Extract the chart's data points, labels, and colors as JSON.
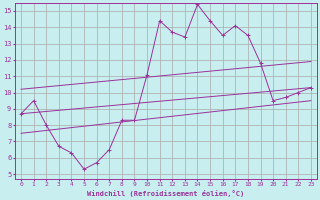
{
  "xlabel": "Windchill (Refroidissement éolien,°C)",
  "background_color": "#c8eef0",
  "grid_color": "#aaaaaa",
  "line_color": "#993399",
  "x_data": [
    0,
    1,
    2,
    3,
    4,
    5,
    6,
    7,
    8,
    9,
    10,
    11,
    12,
    13,
    14,
    15,
    16,
    17,
    18,
    19,
    20,
    21,
    22,
    23
  ],
  "y_zigzag": [
    8.7,
    9.5,
    8.0,
    6.7,
    6.3,
    5.3,
    5.7,
    6.5,
    8.3,
    8.3,
    11.1,
    14.4,
    13.7,
    13.4,
    15.4,
    14.4,
    13.5,
    14.1,
    13.5,
    11.8,
    9.5,
    9.7,
    10.0,
    10.3
  ],
  "band_lines": [
    {
      "x0": 0,
      "y0": 10.2,
      "x1": 23,
      "y1": 11.9
    },
    {
      "x0": 0,
      "y0": 8.7,
      "x1": 23,
      "y1": 10.3
    },
    {
      "x0": 0,
      "y0": 7.5,
      "x1": 23,
      "y1": 9.5
    }
  ],
  "xlim": [
    -0.5,
    23.5
  ],
  "ylim": [
    4.7,
    15.5
  ],
  "yticks": [
    5,
    6,
    7,
    8,
    9,
    10,
    11,
    12,
    13,
    14,
    15
  ],
  "xticks": [
    0,
    1,
    2,
    3,
    4,
    5,
    6,
    7,
    8,
    9,
    10,
    11,
    12,
    13,
    14,
    15,
    16,
    17,
    18,
    19,
    20,
    21,
    22,
    23
  ],
  "figsize": [
    3.2,
    2.0
  ],
  "dpi": 100
}
